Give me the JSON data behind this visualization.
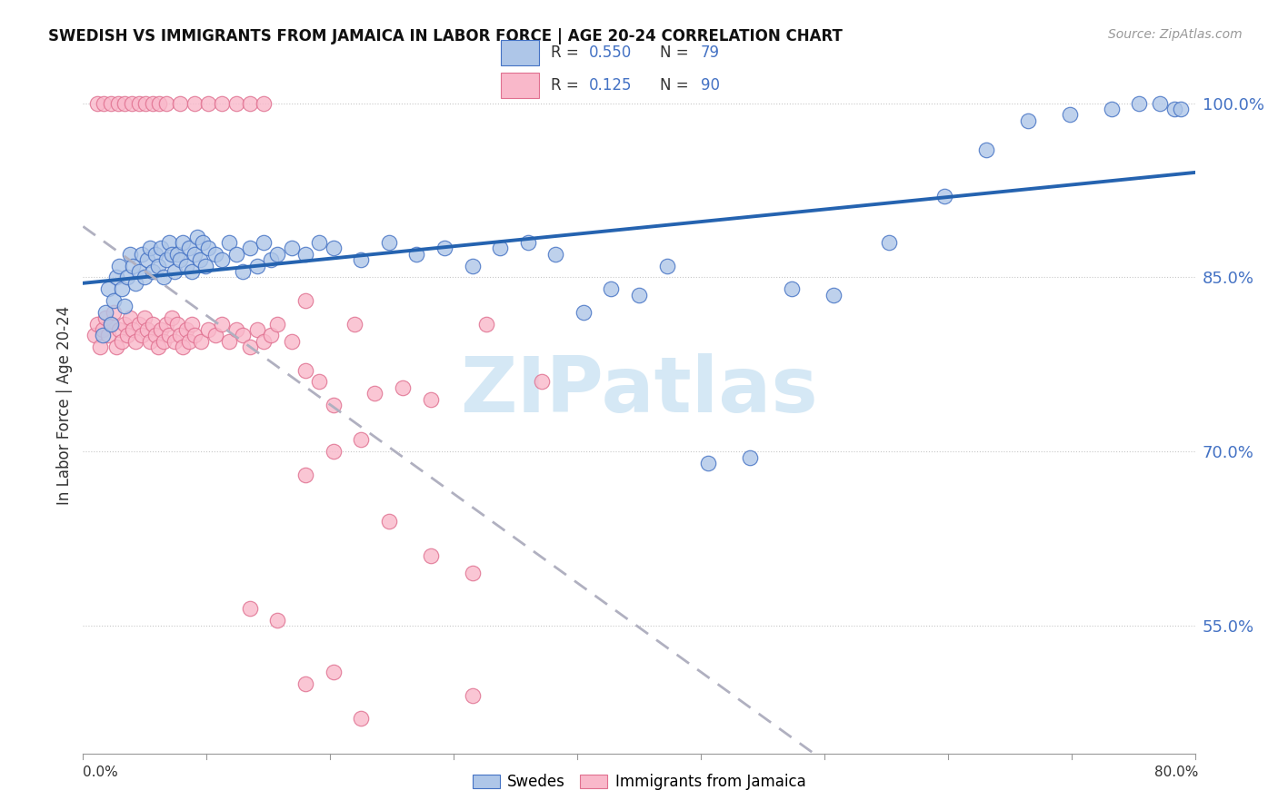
{
  "title": "SWEDISH VS IMMIGRANTS FROM JAMAICA IN LABOR FORCE | AGE 20-24 CORRELATION CHART",
  "source": "Source: ZipAtlas.com",
  "ylabel": "In Labor Force | Age 20-24",
  "xmin": 0.0,
  "xmax": 0.8,
  "ymin": 0.44,
  "ymax": 1.04,
  "yticks": [
    0.55,
    0.7,
    0.85,
    1.0
  ],
  "ytick_labels": [
    "55.0%",
    "70.0%",
    "85.0%",
    "100.0%"
  ],
  "blue_R": 0.55,
  "blue_N": 79,
  "pink_R": 0.125,
  "pink_N": 90,
  "blue_fill": "#aec6e8",
  "blue_edge": "#4472c4",
  "pink_fill": "#f9b8ca",
  "pink_edge": "#e07090",
  "blue_line_color": "#2563b0",
  "pink_line_color": "#bbbbcc",
  "watermark_color": "#d5e8f5",
  "legend_blue_label": "Swedes",
  "legend_pink_label": "Immigrants from Jamaica",
  "figwidth": 14.06,
  "figheight": 8.92,
  "dpi": 100,
  "blue_x": [
    0.014,
    0.016,
    0.018,
    0.02,
    0.022,
    0.024,
    0.026,
    0.028,
    0.03,
    0.032,
    0.034,
    0.036,
    0.038,
    0.04,
    0.042,
    0.044,
    0.046,
    0.048,
    0.05,
    0.052,
    0.054,
    0.056,
    0.058,
    0.06,
    0.062,
    0.064,
    0.066,
    0.068,
    0.07,
    0.072,
    0.074,
    0.076,
    0.078,
    0.08,
    0.082,
    0.084,
    0.086,
    0.088,
    0.09,
    0.095,
    0.1,
    0.105,
    0.11,
    0.115,
    0.12,
    0.125,
    0.13,
    0.135,
    0.14,
    0.15,
    0.16,
    0.17,
    0.18,
    0.2,
    0.22,
    0.24,
    0.26,
    0.28,
    0.3,
    0.32,
    0.34,
    0.36,
    0.38,
    0.4,
    0.42,
    0.45,
    0.48,
    0.51,
    0.54,
    0.58,
    0.62,
    0.65,
    0.68,
    0.71,
    0.74,
    0.76,
    0.775,
    0.785,
    0.79
  ],
  "blue_y": [
    0.8,
    0.82,
    0.84,
    0.81,
    0.83,
    0.85,
    0.86,
    0.84,
    0.825,
    0.85,
    0.87,
    0.86,
    0.845,
    0.855,
    0.87,
    0.85,
    0.865,
    0.875,
    0.855,
    0.87,
    0.86,
    0.875,
    0.85,
    0.865,
    0.88,
    0.87,
    0.855,
    0.87,
    0.865,
    0.88,
    0.86,
    0.875,
    0.855,
    0.87,
    0.885,
    0.865,
    0.88,
    0.86,
    0.875,
    0.87,
    0.865,
    0.88,
    0.87,
    0.855,
    0.875,
    0.86,
    0.88,
    0.865,
    0.87,
    0.875,
    0.87,
    0.88,
    0.875,
    0.865,
    0.88,
    0.87,
    0.875,
    0.86,
    0.875,
    0.88,
    0.87,
    0.82,
    0.84,
    0.835,
    0.86,
    0.69,
    0.695,
    0.84,
    0.835,
    0.88,
    0.92,
    0.96,
    0.985,
    0.99,
    0.995,
    1.0,
    1.0,
    0.995,
    0.995
  ],
  "pink_x": [
    0.008,
    0.01,
    0.012,
    0.014,
    0.016,
    0.018,
    0.02,
    0.022,
    0.024,
    0.026,
    0.028,
    0.03,
    0.032,
    0.034,
    0.036,
    0.038,
    0.04,
    0.042,
    0.044,
    0.046,
    0.048,
    0.05,
    0.052,
    0.054,
    0.056,
    0.058,
    0.06,
    0.062,
    0.064,
    0.066,
    0.068,
    0.07,
    0.072,
    0.074,
    0.076,
    0.078,
    0.08,
    0.085,
    0.09,
    0.095,
    0.1,
    0.105,
    0.11,
    0.115,
    0.12,
    0.125,
    0.13,
    0.135,
    0.14,
    0.15,
    0.01,
    0.015,
    0.02,
    0.025,
    0.03,
    0.035,
    0.04,
    0.045,
    0.05,
    0.055,
    0.06,
    0.07,
    0.08,
    0.09,
    0.1,
    0.11,
    0.12,
    0.13,
    0.16,
    0.195,
    0.23,
    0.16,
    0.17,
    0.18,
    0.21,
    0.25,
    0.29,
    0.33,
    0.16,
    0.18,
    0.2,
    0.22,
    0.25,
    0.28,
    0.12,
    0.14,
    0.16,
    0.18,
    0.2,
    0.28
  ],
  "pink_y": [
    0.8,
    0.81,
    0.79,
    0.805,
    0.815,
    0.8,
    0.81,
    0.82,
    0.79,
    0.805,
    0.795,
    0.81,
    0.8,
    0.815,
    0.805,
    0.795,
    0.81,
    0.8,
    0.815,
    0.805,
    0.795,
    0.81,
    0.8,
    0.79,
    0.805,
    0.795,
    0.81,
    0.8,
    0.815,
    0.795,
    0.81,
    0.8,
    0.79,
    0.805,
    0.795,
    0.81,
    0.8,
    0.795,
    0.805,
    0.8,
    0.81,
    0.795,
    0.805,
    0.8,
    0.79,
    0.805,
    0.795,
    0.8,
    0.81,
    0.795,
    1.0,
    1.0,
    1.0,
    1.0,
    1.0,
    1.0,
    1.0,
    1.0,
    1.0,
    1.0,
    1.0,
    1.0,
    1.0,
    1.0,
    1.0,
    1.0,
    1.0,
    1.0,
    0.83,
    0.81,
    0.755,
    0.77,
    0.76,
    0.74,
    0.75,
    0.745,
    0.81,
    0.76,
    0.68,
    0.7,
    0.71,
    0.64,
    0.61,
    0.595,
    0.565,
    0.555,
    0.5,
    0.51,
    0.47,
    0.49
  ]
}
